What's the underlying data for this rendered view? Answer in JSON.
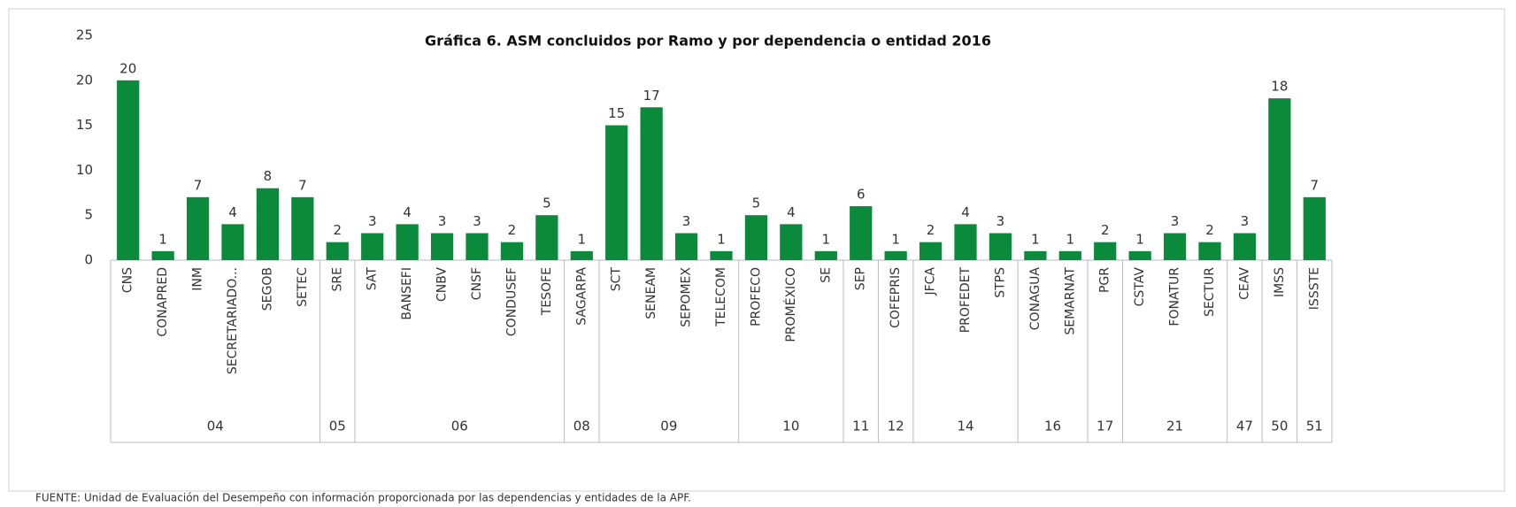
{
  "chart_data": {
    "type": "bar",
    "title": "Gráfica 6. ASM concluidos por Ramo y por dependencia o entidad 2016",
    "source": "FUENTE: Unidad de Evaluación del Desempeño con información proporcionada por las dependencias y entidades de la APF.",
    "categories": [
      "CNS",
      "CONAPRED",
      "INM",
      "SECRETARIADO...",
      "SEGOB",
      "SETEC",
      "SRE",
      "SAT",
      "BANSEFI",
      "CNBV",
      "CNSF",
      "CONDUSEF",
      "TESOFE",
      "SAGARPA",
      "SCT",
      "SENEAM",
      "SEPOMEX",
      "TELECOM",
      "PROFECO",
      "PROMÉXICO",
      "SE",
      "SEP",
      "COFEPRIS",
      "JFCA",
      "PROFEDET",
      "STPS",
      "CONAGUA",
      "SEMARNAT",
      "PGR",
      "CSTAV",
      "FONATUR",
      "SECTUR",
      "CEAV",
      "IMSS",
      "ISSSTE"
    ],
    "ramo": [
      "04",
      "04",
      "04",
      "04",
      "04",
      "04",
      "05",
      "06",
      "06",
      "06",
      "06",
      "06",
      "06",
      "08",
      "09",
      "09",
      "09",
      "09",
      "10",
      "10",
      "10",
      "11",
      "12",
      "14",
      "14",
      "14",
      "16",
      "16",
      "17",
      "21",
      "21",
      "21",
      "47",
      "50",
      "51"
    ],
    "values": [
      20,
      1,
      7,
      4,
      8,
      7,
      2,
      3,
      4,
      3,
      3,
      2,
      5,
      1,
      15,
      17,
      3,
      1,
      5,
      4,
      1,
      6,
      1,
      2,
      4,
      3,
      1,
      1,
      2,
      1,
      3,
      2,
      3,
      18,
      7
    ],
    "color": "#0b8a3c",
    "ylim": [
      0,
      25
    ],
    "yticks": [
      0,
      5,
      10,
      15,
      20,
      25
    ],
    "grid": false
  }
}
